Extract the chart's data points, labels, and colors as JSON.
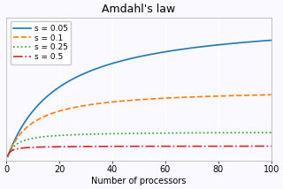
{
  "title": "Amdahl's law",
  "xlabel": "Number of processors",
  "ylabel": "",
  "s_values": [
    0.05,
    0.1,
    0.25,
    0.5
  ],
  "s_labels": [
    "s = 0.05",
    "s = 0.1",
    "s = 0.25",
    "s = 0.5"
  ],
  "colors": [
    "#1f77b4",
    "#ff7f0e",
    "#2ca02c",
    "#d62728"
  ],
  "linestyles": [
    "-",
    "--",
    ":",
    "-."
  ],
  "n_start": 0.5,
  "n_end": 100,
  "n_points": 500,
  "xlim": [
    0,
    100
  ],
  "ylim": [
    0,
    20
  ],
  "xticks": [
    0,
    20,
    40,
    60,
    80,
    100
  ],
  "yticks": [],
  "plot_bg": "#f9f9ff",
  "fig_bg": "#f9f9ff",
  "grid_color": "#ffffff",
  "title_fontsize": 9,
  "legend_fontsize": 6.5,
  "label_fontsize": 7,
  "tick_fontsize": 7,
  "linewidth": 1.2
}
